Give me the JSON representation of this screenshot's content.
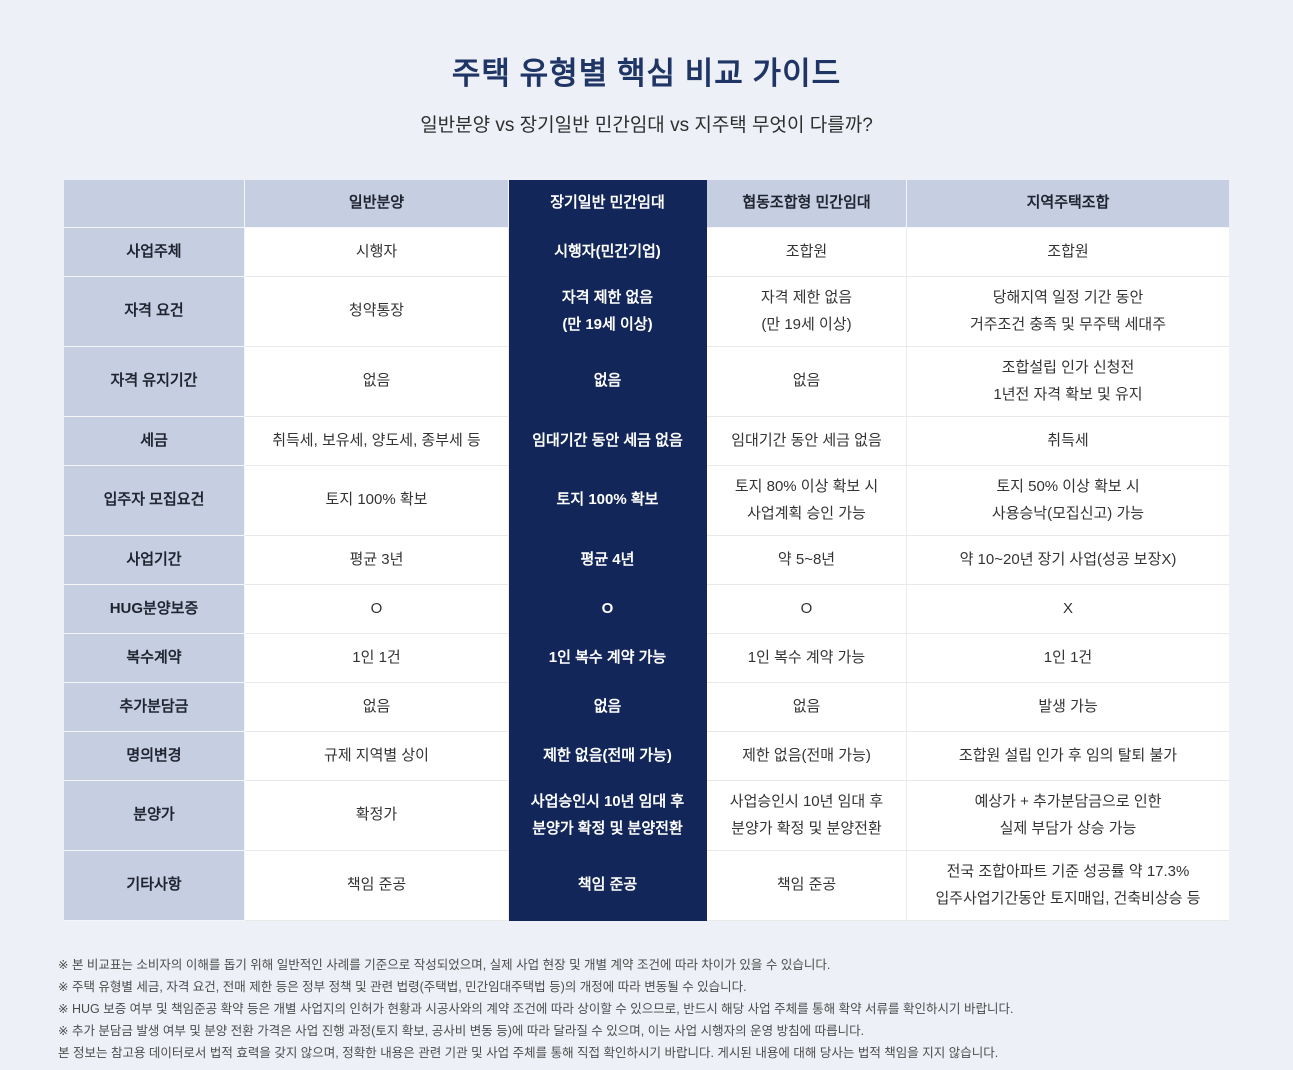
{
  "page": {
    "title": "주택 유형별 핵심 비교 가이드",
    "subtitle": "일반분양 vs 장기일반 민간임대 vs 지주택 무엇이 다를까?"
  },
  "table": {
    "columns": [
      "",
      "일반분양",
      "장기일반 민간임대",
      "협동조합형 민간임대",
      "지역주택조합"
    ],
    "highlight_column_index": 2,
    "rows": [
      {
        "label": "사업주체",
        "cells": [
          "시행자",
          "시행자(민간기업)",
          "조합원",
          "조합원"
        ]
      },
      {
        "label": "자격 요건",
        "cells": [
          "청약통장",
          "자격 제한 없음\n(만 19세 이상)",
          "자격 제한 없음\n(만 19세 이상)",
          "당해지역 일정 기간 동안\n거주조건 충족 및 무주택 세대주"
        ]
      },
      {
        "label": "자격 유지기간",
        "cells": [
          "없음",
          "없음",
          "없음",
          "조합설립 인가 신청전\n1년전 자격 확보 및 유지"
        ]
      },
      {
        "label": "세금",
        "cells": [
          "취득세, 보유세, 양도세, 종부세 등",
          "임대기간 동안 세금 없음",
          "임대기간 동안 세금 없음",
          "취득세"
        ]
      },
      {
        "label": "입주자 모집요건",
        "cells": [
          "토지 100% 확보",
          "토지 100% 확보",
          "토지 80% 이상 확보 시\n사업계획 승인 가능",
          "토지 50% 이상 확보 시\n사용승낙(모집신고) 가능"
        ]
      },
      {
        "label": "사업기간",
        "cells": [
          "평균 3년",
          "평균 4년",
          "약 5~8년",
          "약 10~20년 장기 사업(성공 보장X)"
        ]
      },
      {
        "label": "HUG분양보증",
        "cells": [
          "O",
          "O",
          "O",
          "X"
        ]
      },
      {
        "label": "복수계약",
        "cells": [
          "1인 1건",
          "1인 복수 계약 가능",
          "1인 복수 계약 가능",
          "1인 1건"
        ]
      },
      {
        "label": "추가분담금",
        "cells": [
          "없음",
          "없음",
          "없음",
          "발생 가능"
        ]
      },
      {
        "label": "명의변경",
        "cells": [
          "규제 지역별 상이",
          "제한 없음(전매 가능)",
          "제한 없음(전매 가능)",
          "조합원 설립 인가 후 임의 탈퇴 불가"
        ]
      },
      {
        "label": "분양가",
        "cells": [
          "확정가",
          "사업승인시 10년 임대 후\n분양가 확정 및 분양전환",
          "사업승인시 10년 임대 후\n분양가 확정 및 분양전환",
          "예상가 + 추가분담금으로 인한\n실제 부담가 상승 가능"
        ]
      },
      {
        "label": "기타사항",
        "cells": [
          "책임 준공",
          "책임 준공",
          "책임 준공",
          "전국 조합아파트 기준 성공률 약 17.3%\n입주사업기간동안 토지매입, 건축비상승 등"
        ]
      }
    ]
  },
  "footnotes": [
    "※ 본 비교표는 소비자의 이해를 돕기 위해 일반적인 사례를 기준으로 작성되었으며, 실제 사업 현장 및 개별 계약 조건에 따라 차이가 있을 수 있습니다.",
    "※ 주택 유형별 세금, 자격 요건, 전매 제한 등은 정부 정책 및 관련 법령(주택법, 민간임대주택법 등)의 개정에 따라 변동될 수 있습니다.",
    "※ HUG 보증 여부 및 책임준공 확약 등은 개별 사업지의 인허가 현황과 시공사와의 계약 조건에 따라 상이할 수 있으므로, 반드시 해당 사업 주체를 통해 확약 서류를 확인하시기 바랍니다.",
    "※ 추가 분담금 발생 여부 및 분양 전환 가격은 사업 진행 과정(토지 확보, 공사비 변동 등)에 따라 달라질 수 있으며, 이는 사업 시행자의 운영 방침에 따릅니다.",
    "본 정보는 참고용 데이터로서 법적 효력을 갖지 않으며, 정확한 내용은 관련 기관 및 사업 주체를 통해 직접 확인하시기 바랍니다. 게시된 내용에 대해 당사는 법적 책임을 지지 않습니다."
  ],
  "colors": {
    "page_bg": "#edf0f6",
    "header_bg": "#c5cfe1",
    "highlight_navy": "#12265a",
    "title_navy": "#1f3565"
  }
}
